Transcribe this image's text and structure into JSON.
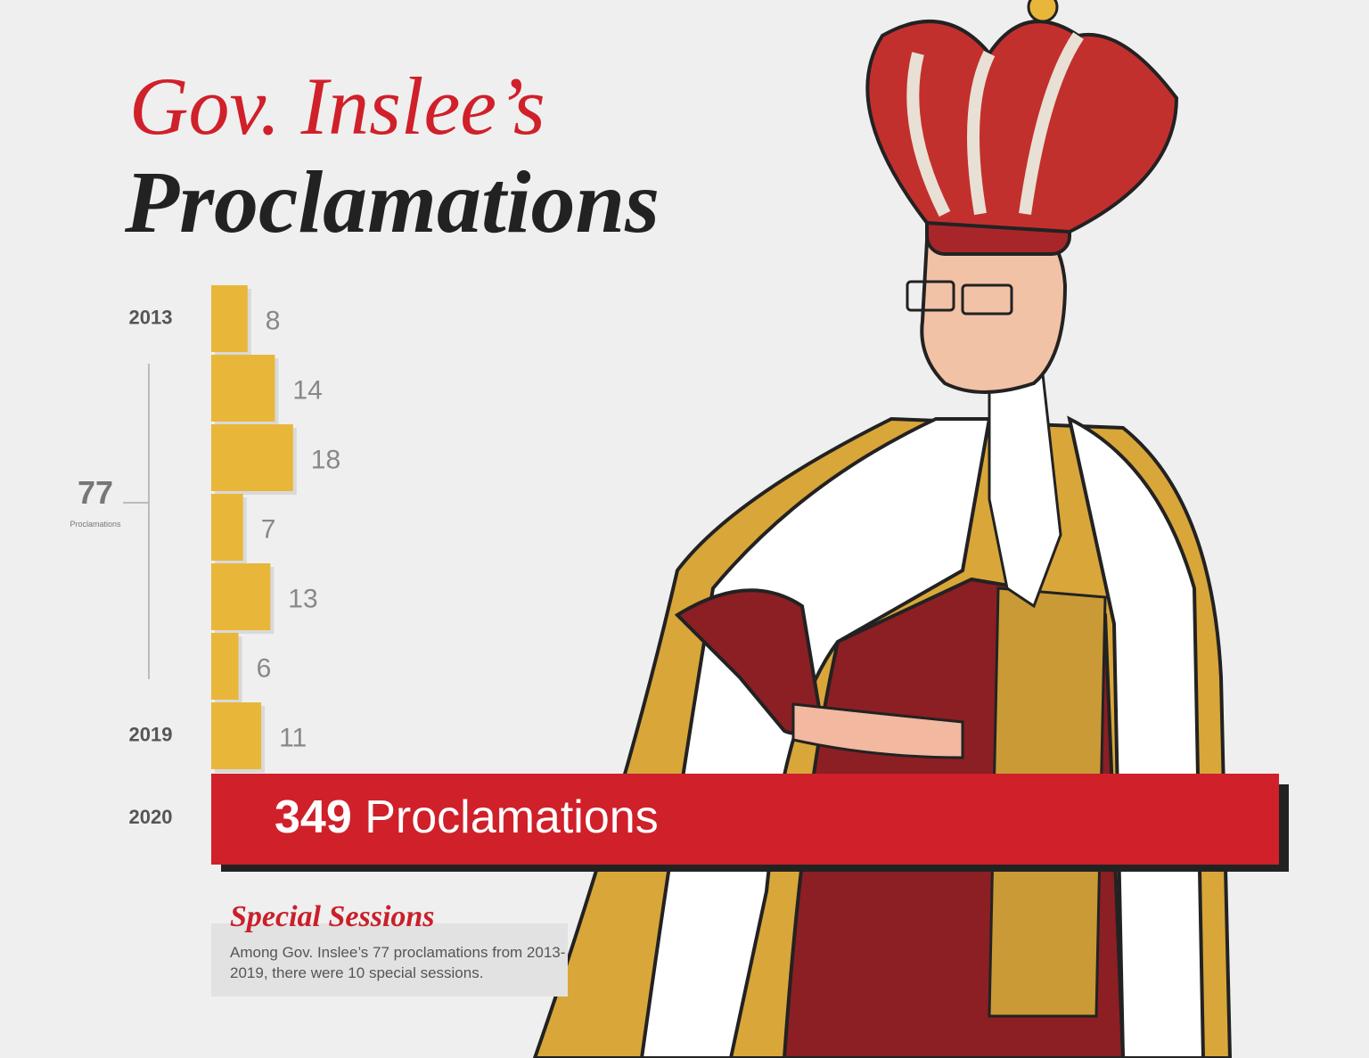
{
  "chart_data": {
    "type": "bar",
    "orientation": "horizontal",
    "title": "Gov. Inslee’s",
    "subtitle": "Proclamations",
    "categories": [
      "2013",
      null,
      null,
      null,
      null,
      null,
      "2019"
    ],
    "values": [
      8,
      14,
      18,
      7,
      13,
      6,
      11
    ],
    "color": "#e8b73a",
    "annotation": {
      "total": 77,
      "label": "Proclamations"
    },
    "highlight": {
      "category": "2020",
      "value": 349,
      "label": "Proclamations",
      "color": "#d0202a"
    },
    "note": {
      "title": "Special Sessions",
      "text": "Among Gov. Inslee’s 77 proclamations from 2013-2019, there were 10 special sessions."
    }
  }
}
